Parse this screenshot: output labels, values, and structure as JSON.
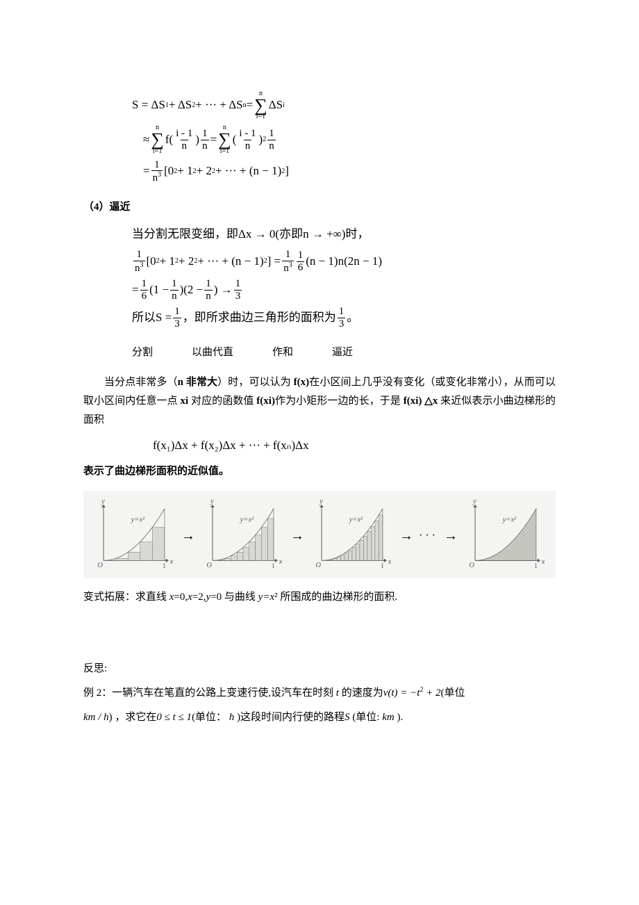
{
  "eq1": {
    "l1_a": "S = ΔS",
    "l1_b": " + ΔS",
    "l1_c": " + ··· + ΔS",
    "l1_d": " = ",
    "sum1_up": "n",
    "sum1_lo": "i=1",
    "l1_e": "ΔS",
    "l2_a": "≈ ",
    "sum2_up": "n",
    "sum2_lo": "i=1",
    "l2_b": "f(",
    "fr1_n": "i - 1",
    "fr1_d": "n",
    "l2_c": ")",
    "fr2_n": "1",
    "fr2_d": "n",
    "l2_d": " = ",
    "sum3_up": "n",
    "sum3_lo": "i=1",
    "l2_e": "(",
    "fr3_n": "i - 1",
    "fr3_d": "n",
    "l2_f": ")",
    "l2_g": " ",
    "fr4_n": "1",
    "fr4_d": "n",
    "l3_a": "= ",
    "fr5_n": "1",
    "fr5_d": "n",
    "l3_b": "[0",
    "l3_c": " + 1",
    "l3_d": " + 2",
    "l3_e": " + ··· + (n − 1)",
    "l3_f": " ]"
  },
  "sec4": "（4）逼近",
  "eq2": {
    "l1": "当分割无限变细，即Δx → 0(亦即n → +∞)时，",
    "fr1_n": "1",
    "fr1_d": "n",
    "l2_a": "[0",
    "l2_b": " + 1",
    "l2_c": " + 2",
    "l2_d": " + ··· + (n − 1)",
    "l2_e": " ] = ",
    "fr2_n": "1",
    "fr2_d": "n",
    "fr3_n": "1",
    "fr3_d": "6",
    "l2_f": "(n − 1)n(2n − 1)",
    "l3_a": "= ",
    "fr4_n": "1",
    "fr4_d": "6",
    "l3_b": "(1 − ",
    "fr5_n": "1",
    "fr5_d": "n",
    "l3_c": ")(2 − ",
    "fr6_n": "1",
    "fr6_d": "n",
    "l3_d": ") → ",
    "fr7_n": "1",
    "fr7_d": "3",
    "l4_a": "所以S = ",
    "fr8_n": "1",
    "fr8_d": "3",
    "l4_b": "，即所求曲边三角形的面积为",
    "fr9_n": "1",
    "fr9_d": "3",
    "l4_c": "。"
  },
  "phases": {
    "a": "分割",
    "b": "以曲代直",
    "c": "作和",
    "d": "逼近"
  },
  "para1": {
    "a": "当分点非常多（",
    "b": "n 非常大",
    "c": "）时，可以认为 ",
    "d": "f(x)",
    "e": "在小区间上几乎没有变化（或变化非常小），从而可以取小区间内任意一点 ",
    "f": "xi",
    "g": " 对应的函数值 ",
    "h": "f(xi)",
    "i": "作为小矩形一边的长，于是 ",
    "j": "f(xi)  △x",
    "k": " 来近似表示小曲边梯形的面积"
  },
  "eq3": "f(x₁)Δx + f(x₂)Δx + ··· + f(xₙ)Δx",
  "para2": "表示了曲边梯形面积的近似值。",
  "charts": {
    "bg": "#f4f4f2",
    "axis_color": "#555555",
    "curve_color": "#777777",
    "bar_color": "#d8d8d4",
    "fill_color": "#c5c5c0",
    "label_y": "y",
    "label_x": "x",
    "label_O": "O",
    "label_1": "1",
    "label_fn": "y=x²",
    "bars": [
      5,
      10,
      16,
      0
    ],
    "arrow": "→",
    "dots": "···"
  },
  "variant": {
    "a": "变式拓展：求直线 ",
    "b": "x",
    "c": "=0,",
    "d": "x",
    "e": "=2,",
    "f": "y",
    "g": "=0 与曲线 ",
    "h": "y=x",
    "i": "² 所围成的曲边梯形的面积."
  },
  "reflect": "反思:",
  "ex2": {
    "a": "例 2：一辆汽车在笔直的公路上变速行使,设汽车在时刻 ",
    "b": "t",
    "c": " 的速度为",
    "d": "v(t) = −t",
    "e": " + 2",
    "f": "(单位",
    "g": "km / h",
    "h": ") ，求它在",
    "i": "0 ≤ t ≤ 1",
    "j": "(单位： ",
    "k": "h",
    "l": " )这段时间内行使的路程",
    "m": "S",
    "n": " (单位: ",
    "o": "km",
    "p": " )."
  }
}
